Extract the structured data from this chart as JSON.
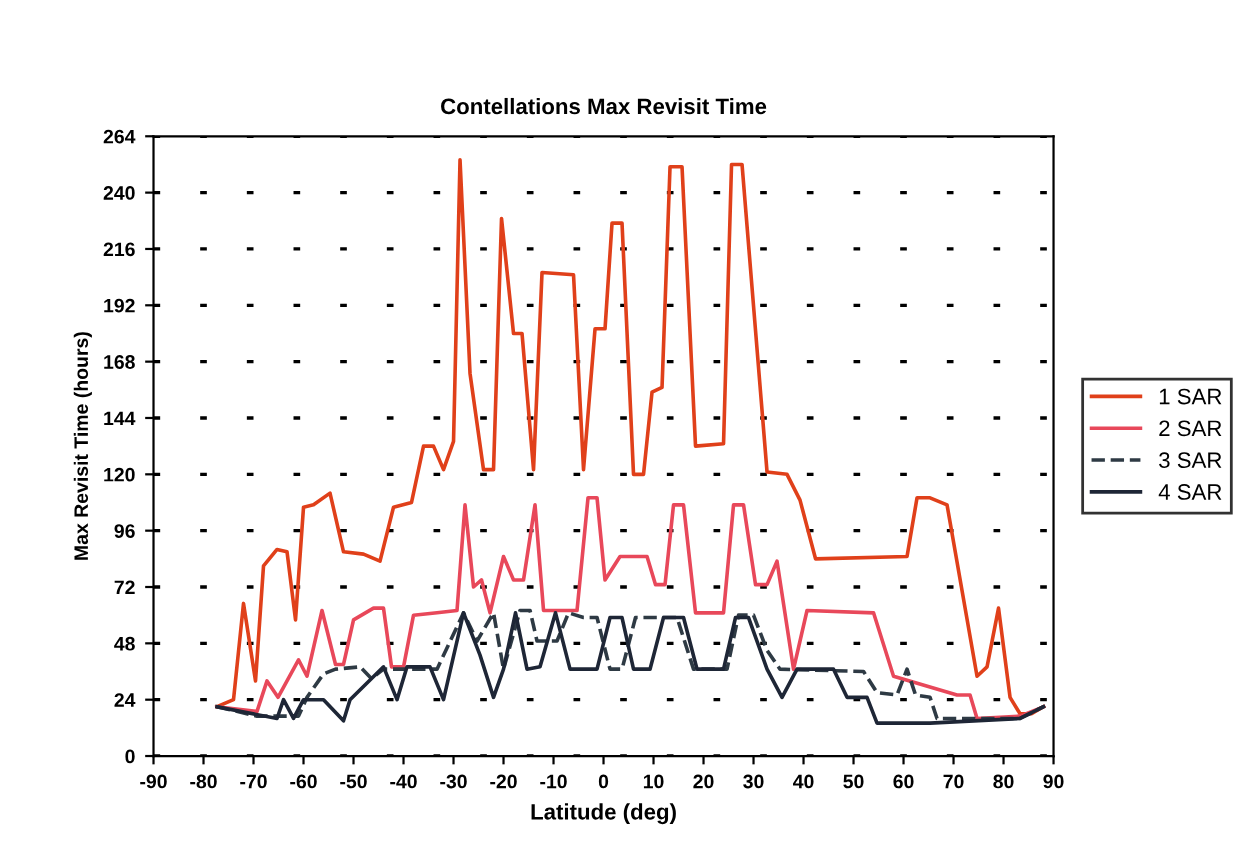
{
  "chart_data": {
    "type": "line",
    "title": "Contellations Max Revisit Time",
    "xlabel": "Latitude (deg)",
    "ylabel": "Max Revisit Time (hours)",
    "xlim": [
      -90,
      90
    ],
    "xticks": [
      -90,
      -80,
      -70,
      -60,
      -50,
      -40,
      -30,
      -20,
      -10,
      0,
      10,
      20,
      30,
      40,
      50,
      60,
      70,
      80,
      90
    ],
    "ylim": [
      0,
      264
    ],
    "yticks": [
      0,
      24,
      48,
      72,
      96,
      120,
      144,
      168,
      192,
      216,
      240,
      264
    ],
    "grid": "y",
    "legend": "right",
    "marker": "none",
    "series": [
      {
        "name": "1 SAR",
        "color": "#e0401a",
        "line_style": "solid",
        "x": [
          -77.3,
          -74,
          -72,
          -69.6,
          -68,
          -65.3,
          -63.3,
          -61.6,
          -60,
          -58,
          -54.7,
          -52,
          -48,
          -44.7,
          -42,
          -38.4,
          -36,
          -34,
          -32,
          -30,
          -28.7,
          -26.7,
          -24,
          -22,
          -20.4,
          -18,
          -16.3,
          -14,
          -12.3,
          -6,
          -4,
          -1.7,
          0.3,
          1.7,
          3.7,
          6,
          8,
          9.7,
          11.7,
          13.3,
          15.7,
          18.4,
          24,
          25.6,
          27.7,
          32.7,
          36.7,
          39.3,
          42.4,
          60.7,
          62.7,
          65.3,
          68.7,
          74.7,
          76.7,
          79,
          81.3,
          83.3,
          85.6,
          88
        ],
        "values": [
          21,
          24,
          65,
          32,
          81,
          88,
          87,
          58,
          106,
          107,
          112,
          87,
          86,
          83,
          106,
          108,
          132,
          132,
          122,
          134,
          254,
          163,
          122,
          122,
          229,
          180,
          180,
          122,
          206,
          205,
          122,
          182,
          182,
          227,
          227,
          120,
          120,
          155,
          157,
          251,
          251,
          132,
          133,
          252,
          252,
          121,
          120,
          109,
          84,
          85,
          110,
          110,
          107,
          34,
          38,
          63,
          25,
          18,
          18,
          21
        ]
      },
      {
        "name": "2 SAR",
        "color": "#e8485a",
        "line_style": "solid",
        "x": [
          -77.3,
          -69.3,
          -67.3,
          -65.1,
          -61,
          -59.3,
          -56.3,
          -53.6,
          -52,
          -50,
          -46,
          -44,
          -42.4,
          -40,
          -38,
          -33.3,
          -29.3,
          -27.7,
          -26,
          -24.4,
          -22.7,
          -20,
          -18,
          -16,
          -13.7,
          -12,
          -5.3,
          -3.1,
          -1.3,
          0.3,
          3.3,
          8.7,
          10.4,
          12.3,
          14,
          16,
          18.4,
          24,
          26,
          28,
          30.4,
          32.7,
          34.7,
          38,
          40.7,
          54,
          58,
          70.7,
          73.3,
          74.7,
          83.3,
          88
        ],
        "values": [
          21,
          19,
          32,
          25,
          41,
          34,
          62,
          39,
          39,
          58,
          63,
          63,
          38,
          38,
          60,
          61,
          62,
          107,
          72,
          75,
          61,
          85,
          75,
          75,
          107,
          62,
          62,
          110,
          110,
          75,
          85,
          85,
          73,
          73,
          107,
          107,
          61,
          61,
          107,
          107,
          73,
          73,
          83,
          37,
          62,
          61,
          34,
          26,
          26,
          16,
          17,
          21
        ]
      },
      {
        "name": "3 SAR",
        "color": "#2e3a44",
        "line_style": "dashed",
        "x": [
          -77.3,
          -69.3,
          -65.3,
          -61,
          -59.3,
          -56,
          -53.6,
          -48.7,
          -46.4,
          -44,
          -33.3,
          -28,
          -25.3,
          -22,
          -20,
          -16.7,
          -14.7,
          -13.3,
          -9.3,
          -7,
          -4,
          -1.3,
          1.3,
          3.7,
          6.4,
          14.7,
          18,
          24.7,
          27,
          30,
          32.7,
          35.3,
          52,
          54.7,
          58.7,
          60.7,
          62.4,
          65.3,
          66.7,
          83.3,
          88
        ],
        "values": [
          21,
          17,
          17,
          17,
          25,
          35,
          37,
          38,
          33,
          37,
          37,
          61,
          49,
          61,
          37,
          62,
          62,
          49,
          49,
          61,
          59,
          59,
          37,
          37,
          59,
          59,
          37,
          37,
          60,
          60,
          45,
          37,
          36,
          27,
          26,
          37,
          26,
          25,
          16,
          16,
          21
        ]
      },
      {
        "name": "4 SAR",
        "color": "#1e2636",
        "line_style": "solid",
        "x": [
          -77.3,
          -65.3,
          -64,
          -62,
          -60,
          -56,
          -52,
          -50.7,
          -44,
          -41.3,
          -39.3,
          -34.7,
          -32,
          -28,
          -24.7,
          -22,
          -20,
          -17.6,
          -15.3,
          -12.7,
          -9.6,
          -6.7,
          -4,
          -1.3,
          1.3,
          3.7,
          6,
          9.3,
          12,
          16,
          18.7,
          24,
          26.4,
          29,
          32.7,
          35.7,
          38.7,
          46,
          48.7,
          52.7,
          54.7,
          65.3,
          83.3,
          88
        ],
        "values": [
          21,
          16,
          24,
          16,
          24,
          24,
          15,
          24,
          38,
          24,
          38,
          38,
          24,
          61,
          43,
          25,
          37,
          61,
          37,
          38,
          61,
          37,
          37,
          37,
          59,
          59,
          37,
          37,
          59,
          59,
          37,
          37,
          59,
          59,
          37,
          25,
          37,
          37,
          25,
          25,
          14,
          14,
          16,
          21
        ]
      }
    ]
  }
}
